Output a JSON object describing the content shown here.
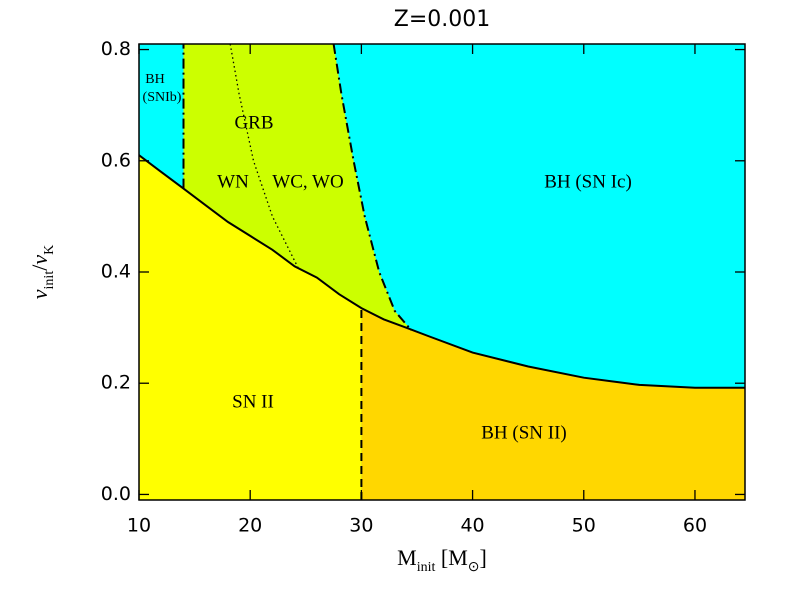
{
  "chart_data": {
    "type": "region",
    "title": "Z=0.001",
    "x_label": [
      {
        "text": "M"
      },
      {
        "text": "init",
        "sub": true
      },
      {
        "text": " [M"
      },
      {
        "text": "⊙",
        "sub": true
      },
      {
        "text": "]"
      }
    ],
    "y_label": [
      {
        "text": "v",
        "italic": true
      },
      {
        "text": "init",
        "sub": true
      },
      {
        "text": "/"
      },
      {
        "text": "v",
        "italic": true
      },
      {
        "text": "K",
        "sub": true
      }
    ],
    "xlim": [
      10,
      64.5
    ],
    "ylim": [
      -0.01,
      0.81
    ],
    "xticks": [
      10,
      20,
      30,
      40,
      50,
      60
    ],
    "yticks": [
      {
        "value": 0,
        "label": "0.0"
      },
      0.2,
      0.4,
      0.6,
      0.8
    ],
    "background": "#00ffff",
    "boundaries": {
      "lower": {
        "style": "solid",
        "x": [
          10,
          12,
          14,
          16,
          18,
          20,
          22,
          24,
          26,
          28,
          30,
          32,
          34,
          36,
          40,
          45,
          50,
          55,
          60,
          64.5
        ],
        "y": [
          0.61,
          0.58,
          0.55,
          0.52,
          0.49,
          0.465,
          0.44,
          0.41,
          0.39,
          0.36,
          0.335,
          0.315,
          0.3,
          0.285,
          0.255,
          0.23,
          0.21,
          0.197,
          0.192,
          0.192
        ]
      },
      "snib": {
        "style": "dashdot",
        "x": [
          14,
          14
        ],
        "y": [
          0.55,
          0.81
        ]
      },
      "wnwc": {
        "style": "dotted",
        "x": [
          18.2,
          19.0,
          20.3,
          22,
          24.3
        ],
        "y": [
          0.81,
          0.72,
          0.6,
          0.5,
          0.408
        ]
      },
      "grb": {
        "style": "dashdot",
        "x": [
          27.5,
          28.2,
          29.3,
          30.3,
          31.6,
          33,
          34.5
        ],
        "y": [
          0.81,
          0.72,
          0.6,
          0.5,
          0.4,
          0.33,
          0.295
        ]
      },
      "bh": {
        "style": "dashed",
        "x": [
          30,
          30
        ],
        "y": [
          -0.01,
          0.335
        ]
      }
    },
    "regions": [
      {
        "label": "SN II",
        "color": "#ffff00"
      },
      {
        "label": "BH (SN II)",
        "color": "#ffd700"
      },
      {
        "label": "GRB",
        "color": "#ccff00"
      },
      {
        "label": "BH (SN Ic)",
        "color": "#00ffff"
      }
    ],
    "annotations": [
      "BH",
      "(SNIb)",
      "WN",
      "WC, WO"
    ]
  }
}
